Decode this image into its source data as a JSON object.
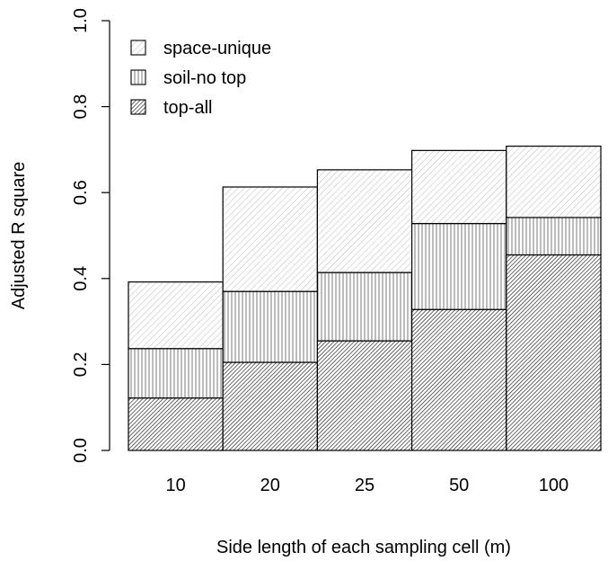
{
  "chart_data": {
    "type": "bar",
    "stacked": true,
    "categories": [
      "10",
      "20",
      "25",
      "50",
      "100"
    ],
    "series": [
      {
        "name": "top-all",
        "values": [
          0.122,
          0.205,
          0.255,
          0.328,
          0.455
        ]
      },
      {
        "name": "soil-no top",
        "values": [
          0.115,
          0.165,
          0.159,
          0.2,
          0.087
        ]
      },
      {
        "name": "space-unique",
        "values": [
          0.155,
          0.243,
          0.239,
          0.17,
          0.166
        ]
      }
    ],
    "legend_order": [
      "space-unique",
      "soil-no top",
      "top-all"
    ],
    "xlabel": "Side length of each sampling cell (m)",
    "ylabel": "Adjusted R square",
    "ylim": [
      0,
      1.0
    ],
    "yticks": [
      "0.0",
      "0.2",
      "0.4",
      "0.6",
      "0.8",
      "1.0"
    ],
    "legend_position": "top-left",
    "grid": false,
    "fill_patterns": {
      "space-unique": "light diagonal hatching",
      "soil-no top": "vertical lines",
      "top-all": "dense diagonal hatching"
    }
  }
}
